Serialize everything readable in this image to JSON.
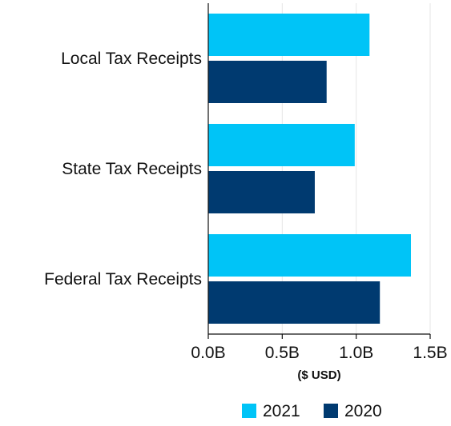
{
  "chart_data": {
    "type": "bar",
    "orientation": "horizontal",
    "categories": [
      "Local Tax Receipts",
      "State Tax Receipts",
      "Federal Tax Receipts"
    ],
    "series": [
      {
        "name": "2021",
        "color": "#00c4f7",
        "values": [
          1.09,
          0.99,
          1.37
        ]
      },
      {
        "name": "2020",
        "color": "#003a70",
        "values": [
          0.8,
          0.72,
          1.16
        ]
      }
    ],
    "xlabel": "($ USD)",
    "ylabel": "",
    "xlim": [
      0,
      1.5
    ],
    "xticks": [
      "0.0B",
      "0.5B",
      "1.0B",
      "1.5B"
    ],
    "grid": true,
    "legend": "bottom-right"
  }
}
